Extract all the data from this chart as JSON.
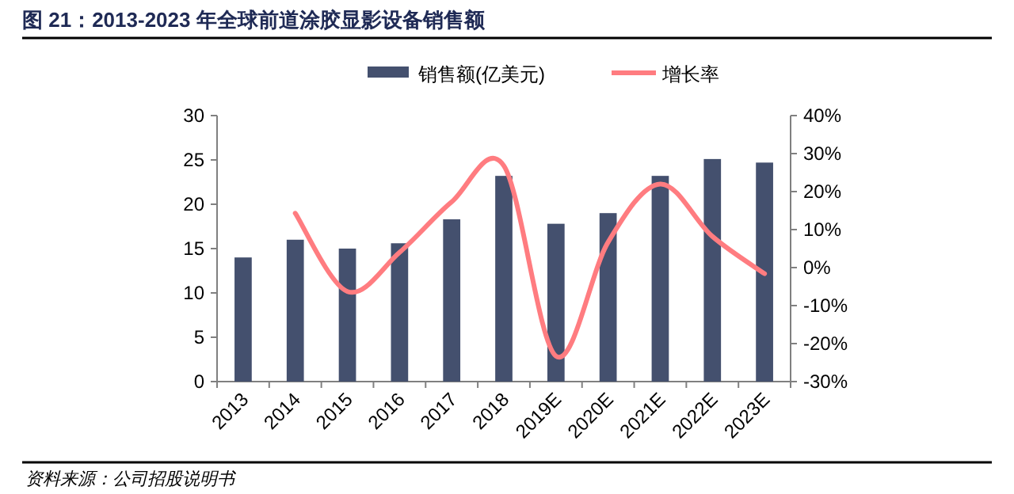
{
  "chart_data": {
    "type": "bar",
    "title": "图 21：2013-2023 年全球前道涂胶显影设备销售额",
    "categories": [
      "2013",
      "2014",
      "2015",
      "2016",
      "2017",
      "2018",
      "2019E",
      "2020E",
      "2021E",
      "2022E",
      "2023E"
    ],
    "series": [
      {
        "name": "销售额(亿美元)",
        "color": "#44506e",
        "values": [
          14.0,
          16.0,
          15.0,
          15.6,
          18.3,
          23.2,
          17.8,
          19.0,
          23.2,
          25.1,
          24.7
        ]
      },
      {
        "name": "增长率",
        "type": "line",
        "axis": "y2",
        "color": "#ff7c80",
        "values": [
          null,
          14.3,
          -6.3,
          4.0,
          17.3,
          26.8,
          -23.3,
          6.7,
          22.0,
          8.2,
          -1.6
        ]
      }
    ],
    "ylim": [
      0,
      30
    ],
    "yticks": [
      0,
      5,
      10,
      15,
      20,
      25,
      30
    ],
    "y2lim": [
      -30,
      40
    ],
    "y2ticks": [
      {
        "value": -30,
        "label": "-30%"
      },
      {
        "value": -20,
        "label": "-20%"
      },
      {
        "value": -10,
        "label": "-10%"
      },
      {
        "value": 0,
        "label": "0%"
      },
      {
        "value": 10,
        "label": "10%"
      },
      {
        "value": 20,
        "label": "20%"
      },
      {
        "value": 30,
        "label": "30%"
      },
      {
        "value": 40,
        "label": "40%"
      }
    ],
    "legend": "top",
    "annotations": [
      "资料来源：公司招股说明书"
    ]
  }
}
